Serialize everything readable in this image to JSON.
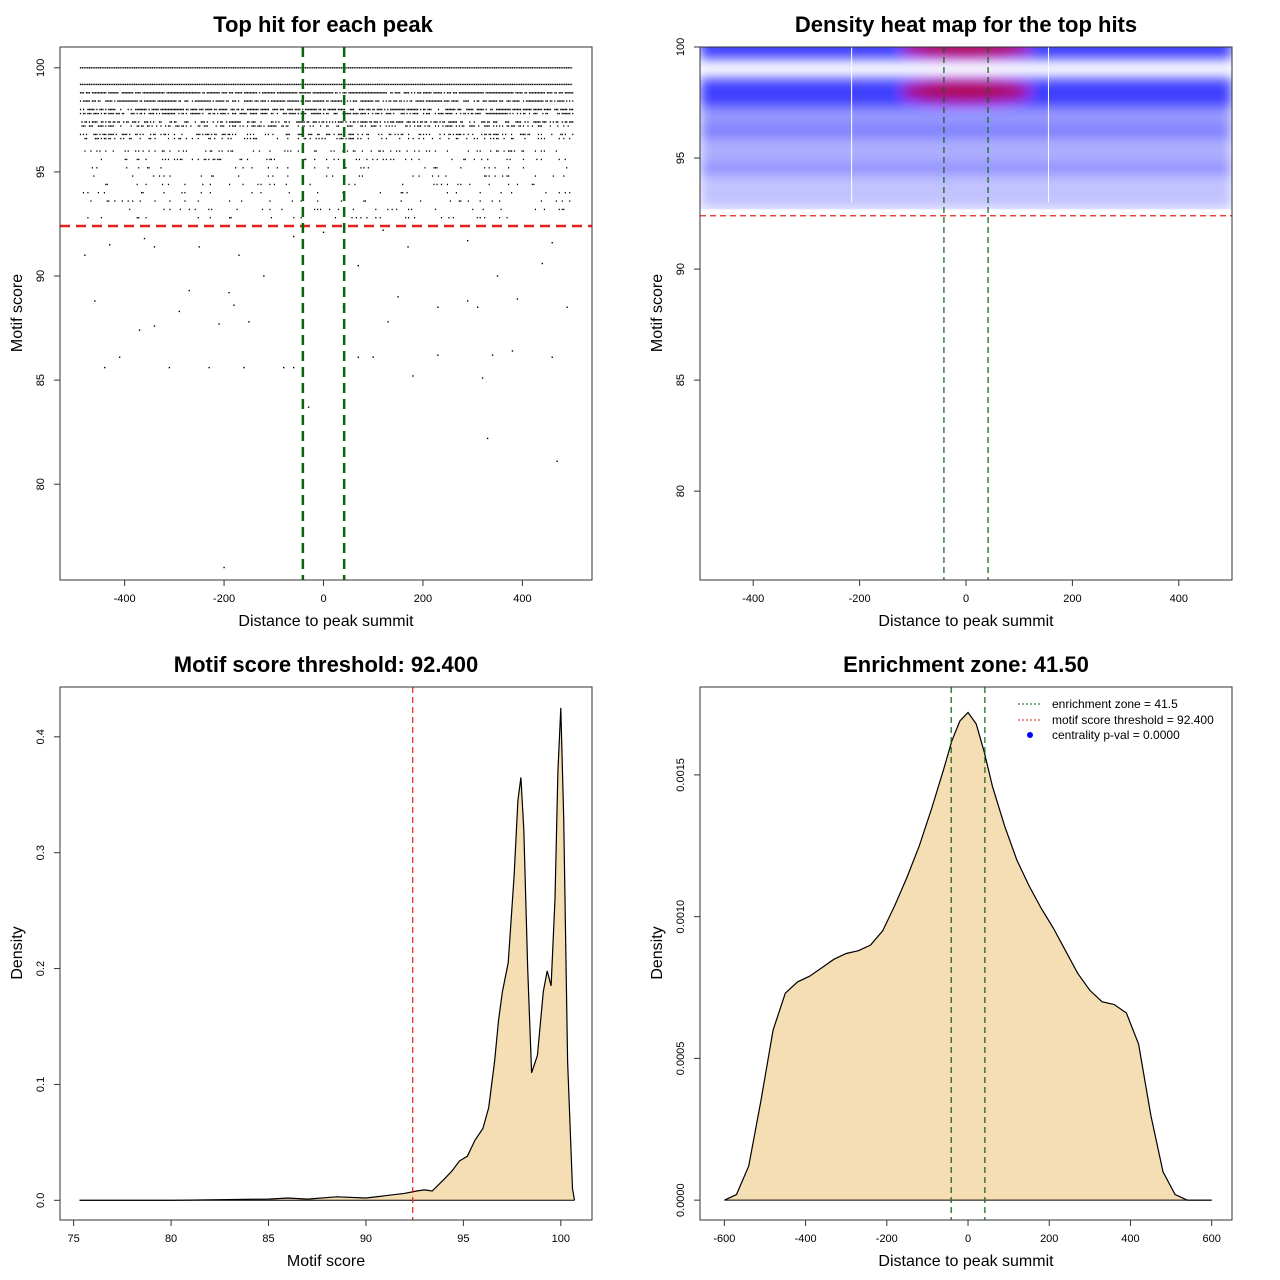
{
  "chart_data": [
    {
      "id": "scatter",
      "type": "scatter",
      "title": "Top hit for each peak",
      "xlabel": "Distance to peak summit",
      "ylabel": "Motif score",
      "xlim": [
        -530,
        540
      ],
      "ylim": [
        75.4,
        101.0
      ],
      "xticks": [
        -400,
        -200,
        0,
        200,
        400
      ],
      "yticks": [
        80,
        85,
        90,
        95,
        100
      ],
      "xtick_labels": [
        "-400",
        "-200",
        "0",
        "200",
        "400"
      ],
      "ytick_labels": [
        "80",
        "85",
        "90",
        "95",
        "100"
      ],
      "x_range_of_points": [
        -490,
        500
      ],
      "dense_score_rows": [
        100.0,
        99.2,
        98.8,
        98.4,
        98.0,
        97.8,
        97.4,
        97.2,
        96.8,
        96.6,
        96.0,
        95.6,
        95.2,
        94.8,
        94.4,
        94.0,
        93.6,
        93.2,
        92.8
      ],
      "sparse_points": [
        {
          "x": -200,
          "y": 76.0
        },
        {
          "x": 470,
          "y": 81.1
        },
        {
          "x": 330,
          "y": 82.2
        },
        {
          "x": -30,
          "y": 83.7
        },
        {
          "x": -440,
          "y": 85.6
        },
        {
          "x": -310,
          "y": 85.6
        },
        {
          "x": -230,
          "y": 85.6
        },
        {
          "x": -160,
          "y": 85.6
        },
        {
          "x": -80,
          "y": 85.6
        },
        {
          "x": -60,
          "y": 85.6
        },
        {
          "x": 180,
          "y": 85.2
        },
        {
          "x": 320,
          "y": 85.1
        },
        {
          "x": -410,
          "y": 86.1
        },
        {
          "x": 70,
          "y": 86.1
        },
        {
          "x": 100,
          "y": 86.1
        },
        {
          "x": 230,
          "y": 86.2
        },
        {
          "x": 340,
          "y": 86.2
        },
        {
          "x": 460,
          "y": 86.1
        },
        {
          "x": 380,
          "y": 86.4
        },
        {
          "x": -370,
          "y": 87.4
        },
        {
          "x": -340,
          "y": 87.6
        },
        {
          "x": -210,
          "y": 87.7
        },
        {
          "x": -150,
          "y": 87.8
        },
        {
          "x": 130,
          "y": 87.8
        },
        {
          "x": -290,
          "y": 88.3
        },
        {
          "x": -180,
          "y": 88.6
        },
        {
          "x": 40,
          "y": 88.5
        },
        {
          "x": 230,
          "y": 88.5
        },
        {
          "x": 310,
          "y": 88.5
        },
        {
          "x": 490,
          "y": 88.5
        },
        {
          "x": -460,
          "y": 88.8
        },
        {
          "x": -190,
          "y": 89.2
        },
        {
          "x": 290,
          "y": 88.8
        },
        {
          "x": 390,
          "y": 88.9
        },
        {
          "x": -270,
          "y": 89.3
        },
        {
          "x": 150,
          "y": 89.0
        },
        {
          "x": -120,
          "y": 90.0
        },
        {
          "x": 350,
          "y": 90.0
        },
        {
          "x": -480,
          "y": 91.0
        },
        {
          "x": -430,
          "y": 91.5
        },
        {
          "x": -360,
          "y": 91.8
        },
        {
          "x": -340,
          "y": 91.4
        },
        {
          "x": -250,
          "y": 91.4
        },
        {
          "x": -170,
          "y": 91.0
        },
        {
          "x": 70,
          "y": 90.5
        },
        {
          "x": 170,
          "y": 91.4
        },
        {
          "x": 290,
          "y": 91.7
        },
        {
          "x": 460,
          "y": 91.6
        },
        {
          "x": 440,
          "y": 90.6
        },
        {
          "x": 0,
          "y": 92.1
        },
        {
          "x": 120,
          "y": 92.2
        },
        {
          "x": -60,
          "y": 91.9
        }
      ],
      "hlines": [
        {
          "y": 92.4,
          "color": "#e8201c",
          "style": "dashed"
        }
      ],
      "vlines": [
        {
          "x": -41.5,
          "color": "#0a6410",
          "style": "dashed"
        },
        {
          "x": 41.5,
          "color": "#0a6410",
          "style": "dashed"
        }
      ]
    },
    {
      "id": "heatmap",
      "type": "heatmap",
      "title": "Density heat map for the top hits",
      "xlabel": "Distance to peak summit",
      "ylabel": "Motif score",
      "xlim": [
        -500,
        500
      ],
      "ylim": [
        76.0,
        100.0
      ],
      "xticks": [
        -400,
        -200,
        0,
        200,
        400
      ],
      "yticks": [
        80,
        85,
        90,
        95,
        100
      ],
      "xtick_labels": [
        "-400",
        "-200",
        "0",
        "200",
        "400"
      ],
      "ytick_labels": [
        "80",
        "85",
        "90",
        "95",
        "100"
      ],
      "color_scale": [
        "#ffffff",
        "#0000ff",
        "#c80028"
      ],
      "density_bands": [
        {
          "y": 100.0,
          "spread": 0.55,
          "weight": 1.0
        },
        {
          "y": 98.0,
          "spread": 0.6,
          "weight": 0.95
        },
        {
          "y": 96.8,
          "spread": 0.8,
          "weight": 0.35
        },
        {
          "y": 95.3,
          "spread": 1.0,
          "weight": 0.2
        },
        {
          "y": 93.7,
          "spread": 1.0,
          "weight": 0.08
        }
      ],
      "hlines": [
        {
          "y": 92.4,
          "color": "#e8201c",
          "style": "dashed"
        }
      ],
      "vlines": [
        {
          "x": -41.5,
          "color": "#0a6410",
          "style": "dashed"
        },
        {
          "x": 41.5,
          "color": "#0a6410",
          "style": "dashed"
        }
      ]
    },
    {
      "id": "score_density",
      "type": "area",
      "title": "Motif score threshold: 92.400",
      "xlabel": "Motif score",
      "ylabel": "Density",
      "xlim": [
        74.3,
        101.6
      ],
      "ylim": [
        -0.017,
        0.443
      ],
      "xticks": [
        75,
        80,
        85,
        90,
        95,
        100
      ],
      "yticks": [
        0.0,
        0.1,
        0.2,
        0.3,
        0.4
      ],
      "xtick_labels": [
        "75",
        "80",
        "85",
        "90",
        "95",
        "100"
      ],
      "ytick_labels": [
        "0.0",
        "0.1",
        "0.2",
        "0.3",
        "0.4"
      ],
      "fill": "#f5deb3",
      "x": [
        75.3,
        80,
        85,
        86,
        87,
        88.5,
        90,
        91,
        92,
        92.6,
        93.0,
        93.4,
        94.0,
        94.4,
        94.8,
        95.2,
        95.6,
        96.0,
        96.3,
        96.6,
        96.8,
        97.0,
        97.3,
        97.6,
        97.8,
        97.95,
        98.1,
        98.3,
        98.5,
        98.8,
        99.1,
        99.3,
        99.5,
        99.7,
        99.85,
        100.0,
        100.15,
        100.35,
        100.6,
        100.7
      ],
      "y": [
        0.0,
        0.0,
        0.001,
        0.002,
        0.001,
        0.003,
        0.002,
        0.004,
        0.006,
        0.008,
        0.009,
        0.008,
        0.018,
        0.025,
        0.034,
        0.038,
        0.052,
        0.062,
        0.08,
        0.12,
        0.155,
        0.18,
        0.205,
        0.28,
        0.345,
        0.365,
        0.32,
        0.2,
        0.11,
        0.125,
        0.18,
        0.198,
        0.185,
        0.26,
        0.37,
        0.425,
        0.33,
        0.12,
        0.01,
        0.0
      ],
      "vlines": [
        {
          "x": 92.4,
          "color": "#e8201c",
          "style": "dashed"
        }
      ]
    },
    {
      "id": "distance_density",
      "type": "area",
      "title": "Enrichment zone: 41.50",
      "xlabel": "Distance to peak summit",
      "ylabel": "Density",
      "xlim": [
        -660,
        650
      ],
      "ylim": [
        -7e-05,
        0.00181
      ],
      "xticks": [
        -600,
        -400,
        -200,
        0,
        200,
        400,
        600
      ],
      "yticks": [
        0.0,
        0.0005,
        0.001,
        0.0015
      ],
      "xtick_labels": [
        "-600",
        "-400",
        "-200",
        "0",
        "200",
        "400",
        "600"
      ],
      "ytick_labels": [
        "0.0000",
        "0.0005",
        "0.0010",
        "0.0015"
      ],
      "fill": "#f5deb3",
      "x": [
        -600,
        -570,
        -540,
        -510,
        -480,
        -450,
        -420,
        -390,
        -360,
        -330,
        -300,
        -270,
        -240,
        -210,
        -180,
        -150,
        -120,
        -90,
        -60,
        -40,
        -20,
        0,
        20,
        40,
        60,
        90,
        120,
        150,
        180,
        210,
        240,
        270,
        300,
        330,
        360,
        390,
        420,
        450,
        480,
        510,
        540,
        570,
        600
      ],
      "y": [
        0.0,
        2e-05,
        0.00012,
        0.00035,
        0.0006,
        0.00073,
        0.00077,
        0.00079,
        0.00082,
        0.00085,
        0.00087,
        0.00088,
        0.0009,
        0.00095,
        0.00104,
        0.00114,
        0.00125,
        0.00138,
        0.00152,
        0.00162,
        0.00169,
        0.00172,
        0.00168,
        0.00158,
        0.00146,
        0.00132,
        0.0012,
        0.00111,
        0.00103,
        0.00096,
        0.00088,
        0.0008,
        0.00074,
        0.0007,
        0.00069,
        0.00066,
        0.00055,
        0.0003,
        0.0001,
        2e-05,
        0.0,
        0.0,
        0.0
      ],
      "vlines": [
        {
          "x": -41.5,
          "color": "#0a6410",
          "style": "dashed"
        },
        {
          "x": 41.5,
          "color": "#0a6410",
          "style": "dashed"
        }
      ],
      "legend": {
        "position": "top-right",
        "entries": [
          {
            "label": "enrichment zone = 41.5",
            "color": "#0a6410",
            "style": "dotted"
          },
          {
            "label": "motif score threshold = 92.400",
            "color": "#e8201c",
            "style": "dotted"
          },
          {
            "label": "centrality p-val = 0.0000",
            "color": "#0000ff",
            "style": "point"
          }
        ]
      }
    }
  ]
}
